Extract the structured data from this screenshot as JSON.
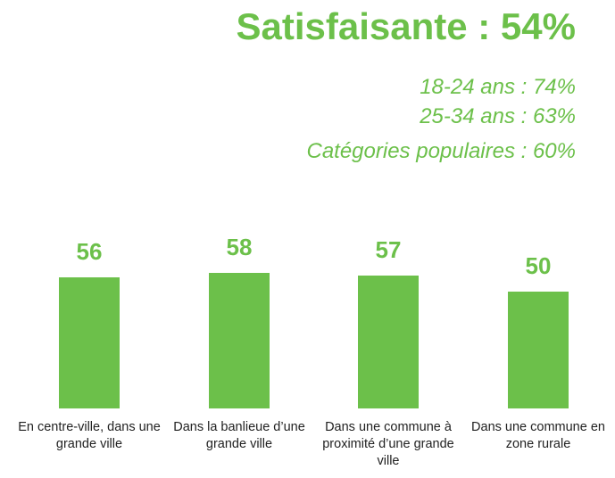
{
  "chart_data": {
    "type": "bar",
    "title": "Satisfaisante : 54%",
    "annotations": [
      "18-24 ans : 74%",
      "25-34 ans : 63%",
      "Catégories populaires : 60%"
    ],
    "categories": [
      "En centre-ville, dans une grande ville",
      "Dans la banlieue d’une grande ville",
      "Dans une commune à proximité d’une grande ville",
      "Dans une commune en zone rurale"
    ],
    "values": [
      56,
      58,
      57,
      50
    ],
    "color": "#6cc04a"
  }
}
